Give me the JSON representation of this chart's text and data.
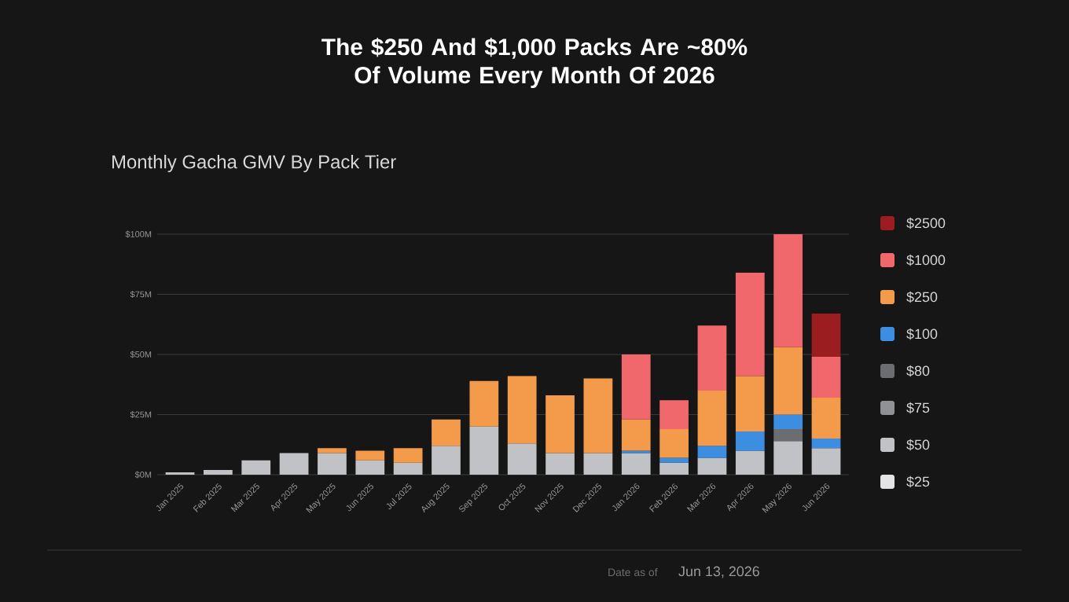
{
  "chart_data": {
    "type": "bar",
    "stacked": true,
    "title": "The $250 And $1,000 Packs Are ~80%\nOf Volume Every Month Of 2026",
    "subtitle": "Monthly Gacha GMV By Pack Tier",
    "categories": [
      "Jan 2025",
      "Feb 2025",
      "Mar 2025",
      "Apr 2025",
      "May 2025",
      "Jun 2025",
      "Jul 2025",
      "Aug 2025",
      "Sep 2025",
      "Oct 2025",
      "Nov 2025",
      "Dec 2025",
      "Jan 2026",
      "Feb 2026",
      "Mar 2026",
      "Apr 2026",
      "May 2026",
      "Jun 2026"
    ],
    "series": [
      {
        "name": "$25",
        "color": "#e4e4e6",
        "values": [
          null,
          null,
          null,
          null,
          null,
          null,
          null,
          null,
          null,
          null,
          null,
          null,
          null,
          null,
          null,
          null,
          null,
          null
        ]
      },
      {
        "name": "$50",
        "color": "#c1c2c6",
        "values": [
          1,
          2,
          6,
          9,
          9,
          6,
          5,
          12,
          20,
          13,
          9,
          9,
          9,
          5,
          7,
          10,
          14,
          11
        ]
      },
      {
        "name": "$75",
        "color": "#909195",
        "values": [
          null,
          null,
          null,
          null,
          null,
          null,
          null,
          null,
          null,
          null,
          null,
          null,
          null,
          null,
          null,
          null,
          null,
          null
        ]
      },
      {
        "name": "$80",
        "color": "#6c6d71",
        "values": [
          null,
          null,
          null,
          null,
          null,
          null,
          null,
          null,
          null,
          null,
          null,
          null,
          null,
          null,
          null,
          null,
          5,
          null
        ]
      },
      {
        "name": "$100",
        "color": "#3d8ee0",
        "values": [
          null,
          null,
          null,
          null,
          null,
          null,
          null,
          null,
          null,
          null,
          null,
          null,
          1,
          2,
          5,
          8,
          6,
          4
        ]
      },
      {
        "name": "$250",
        "color": "#f39b4b",
        "values": [
          null,
          null,
          null,
          null,
          2,
          4,
          6,
          11,
          19,
          28,
          24,
          31,
          13,
          12,
          23,
          23,
          28,
          17
        ]
      },
      {
        "name": "$1000",
        "color": "#f0686b",
        "values": [
          null,
          null,
          null,
          null,
          null,
          null,
          null,
          null,
          null,
          null,
          null,
          null,
          27,
          12,
          27,
          43,
          47,
          17
        ]
      },
      {
        "name": "$2500",
        "color": "#9c1d1f",
        "values": [
          null,
          null,
          null,
          null,
          null,
          null,
          null,
          null,
          null,
          null,
          null,
          null,
          null,
          null,
          null,
          null,
          null,
          18
        ]
      }
    ],
    "ylim": [
      0,
      100
    ],
    "yticks": [
      {
        "value": 0,
        "label": "$0M"
      },
      {
        "value": 25,
        "label": "$25M"
      },
      {
        "value": 50,
        "label": "$50M"
      },
      {
        "value": 75,
        "label": "$75M"
      },
      {
        "value": 100,
        "label": "$100M"
      }
    ],
    "grid": "y",
    "legend": "right",
    "annotations": [
      "Date as of",
      "Jun 13, 2026"
    ]
  }
}
